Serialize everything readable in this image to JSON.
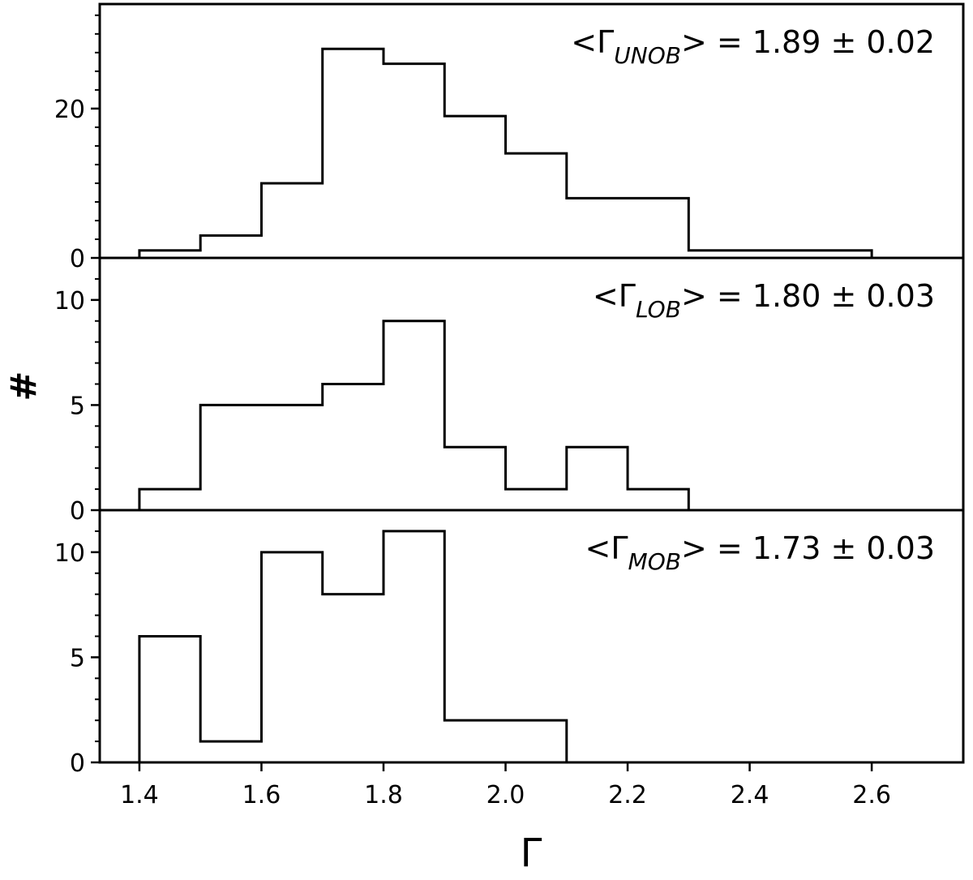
{
  "chart_data": {
    "type": "histogram-stack",
    "shared_x": {
      "label": "Γ",
      "ticks": [
        1.4,
        1.6,
        1.8,
        2.0,
        2.2,
        2.4,
        2.6
      ],
      "tick_labels": [
        "1.4",
        "1.6",
        "1.8",
        "2.0",
        "2.2",
        "2.4",
        "2.6"
      ],
      "range": [
        1.335,
        2.75
      ]
    },
    "shared_y_label": "#",
    "panels": [
      {
        "name": "UNOB",
        "annotation": {
          "prefix": "<Γ",
          "subscript": "UNOB",
          "suffix": "> = 1.89 ± 0.02"
        },
        "ylim": [
          0,
          34
        ],
        "yticks": [
          0,
          20
        ],
        "tick_labels": [
          "0",
          "20"
        ],
        "minor_step": 2.5,
        "bin_edges": [
          1.4,
          1.5,
          1.6,
          1.7,
          1.8,
          1.9,
          2.0,
          2.1,
          2.2,
          2.3,
          2.4,
          2.5,
          2.6
        ],
        "counts": [
          1,
          3,
          10,
          28,
          26,
          19,
          14,
          8,
          8,
          1,
          1,
          1
        ]
      },
      {
        "name": "LOB",
        "annotation": {
          "prefix": "<Γ",
          "subscript": "LOB",
          "suffix": "> = 1.80 ± 0.03"
        },
        "ylim": [
          0,
          12
        ],
        "yticks": [
          0,
          5,
          10
        ],
        "tick_labels": [
          "0",
          "5",
          "10"
        ],
        "minor_step": 1,
        "bin_edges": [
          1.4,
          1.5,
          1.6,
          1.7,
          1.8,
          1.9,
          2.0,
          2.1,
          2.2,
          2.3
        ],
        "counts": [
          1,
          5,
          5,
          6,
          9,
          3,
          1,
          3,
          1
        ]
      },
      {
        "name": "MOB",
        "annotation": {
          "prefix": "<Γ",
          "subscript": "MOB",
          "suffix": "> = 1.73 ± 0.03"
        },
        "ylim": [
          0,
          12
        ],
        "yticks": [
          0,
          5,
          10
        ],
        "tick_labels": [
          "0",
          "5",
          "10"
        ],
        "minor_step": 1,
        "bin_edges": [
          1.4,
          1.5,
          1.6,
          1.7,
          1.8,
          1.9,
          2.0,
          2.1,
          2.2,
          2.3,
          2.4,
          2.5,
          2.6,
          2.7
        ],
        "counts": [
          6,
          1,
          10,
          8,
          11,
          2,
          2,
          0,
          0,
          0,
          0,
          0,
          0
        ]
      }
    ],
    "grid": false,
    "legend": "none",
    "line_color": "#000000"
  }
}
